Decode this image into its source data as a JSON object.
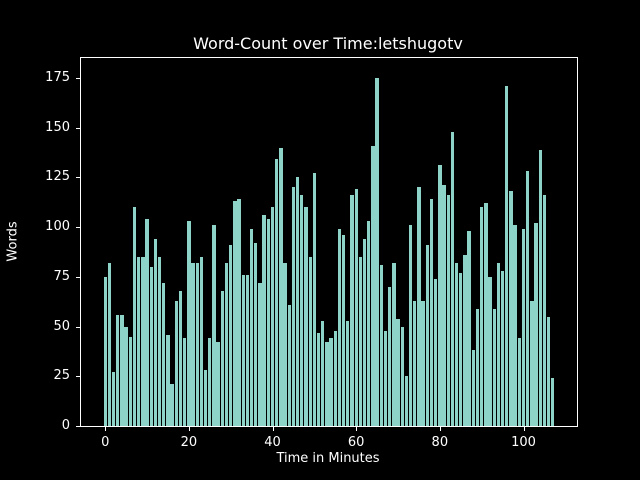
{
  "title": "Word-Count over Time:letshugotv",
  "x_axis": {
    "label": "Time in Minutes",
    "ticks": [
      0,
      20,
      40,
      60,
      80,
      100
    ]
  },
  "y_axis": {
    "label": "Words",
    "ticks": [
      0,
      25,
      50,
      75,
      100,
      125,
      150,
      175
    ]
  },
  "colors": {
    "background": "#000000",
    "bar": "#8dd3c7",
    "text": "#ffffff",
    "spine": "#ffffff"
  },
  "chart_data": {
    "type": "bar",
    "title": "Word-Count over Time:letshugotv",
    "xlabel": "Time in Minutes",
    "ylabel": "Words",
    "x_unit": "minutes",
    "x_start": 0,
    "x_step": 1,
    "x": [
      0,
      1,
      2,
      3,
      4,
      5,
      6,
      7,
      8,
      9,
      10,
      11,
      12,
      13,
      14,
      15,
      16,
      17,
      18,
      19,
      20,
      21,
      22,
      23,
      24,
      25,
      26,
      27,
      28,
      29,
      30,
      31,
      32,
      33,
      34,
      35,
      36,
      37,
      38,
      39,
      40,
      41,
      42,
      43,
      44,
      45,
      46,
      47,
      48,
      49,
      50,
      51,
      52,
      53,
      54,
      55,
      56,
      57,
      58,
      59,
      60,
      61,
      62,
      63,
      64,
      65,
      66,
      67,
      68,
      69,
      70,
      71,
      72,
      73,
      74,
      75,
      76,
      77,
      78,
      79,
      80,
      81,
      82,
      83,
      84,
      85,
      86,
      87,
      88,
      89,
      90,
      91,
      92,
      93,
      94,
      95,
      96,
      97,
      98,
      99,
      100,
      101,
      102,
      103,
      104,
      105,
      106,
      107
    ],
    "values": [
      75,
      82,
      27,
      56,
      56,
      50,
      45,
      110,
      85,
      85,
      104,
      80,
      94,
      85,
      72,
      46,
      21,
      63,
      68,
      44,
      103,
      82,
      82,
      85,
      28,
      44,
      101,
      42,
      68,
      82,
      91,
      113,
      114,
      76,
      76,
      99,
      92,
      72,
      106,
      104,
      110,
      134,
      140,
      82,
      61,
      120,
      125,
      116,
      110,
      85,
      127,
      47,
      53,
      42,
      44,
      48,
      99,
      96,
      53,
      116,
      119,
      85,
      94,
      103,
      141,
      175,
      81,
      48,
      70,
      82,
      54,
      50,
      25,
      101,
      63,
      120,
      63,
      91,
      114,
      74,
      131,
      121,
      116,
      148,
      82,
      77,
      86,
      98,
      38,
      59,
      110,
      112,
      75,
      59,
      82,
      78,
      171,
      118,
      101,
      44,
      99,
      128,
      63,
      102,
      139,
      116,
      55,
      24
    ],
    "bar_width": 0.8,
    "xlim": [
      -5.79,
      112.79
    ],
    "ylim": [
      0,
      185
    ],
    "grid": false,
    "legend": null
  }
}
